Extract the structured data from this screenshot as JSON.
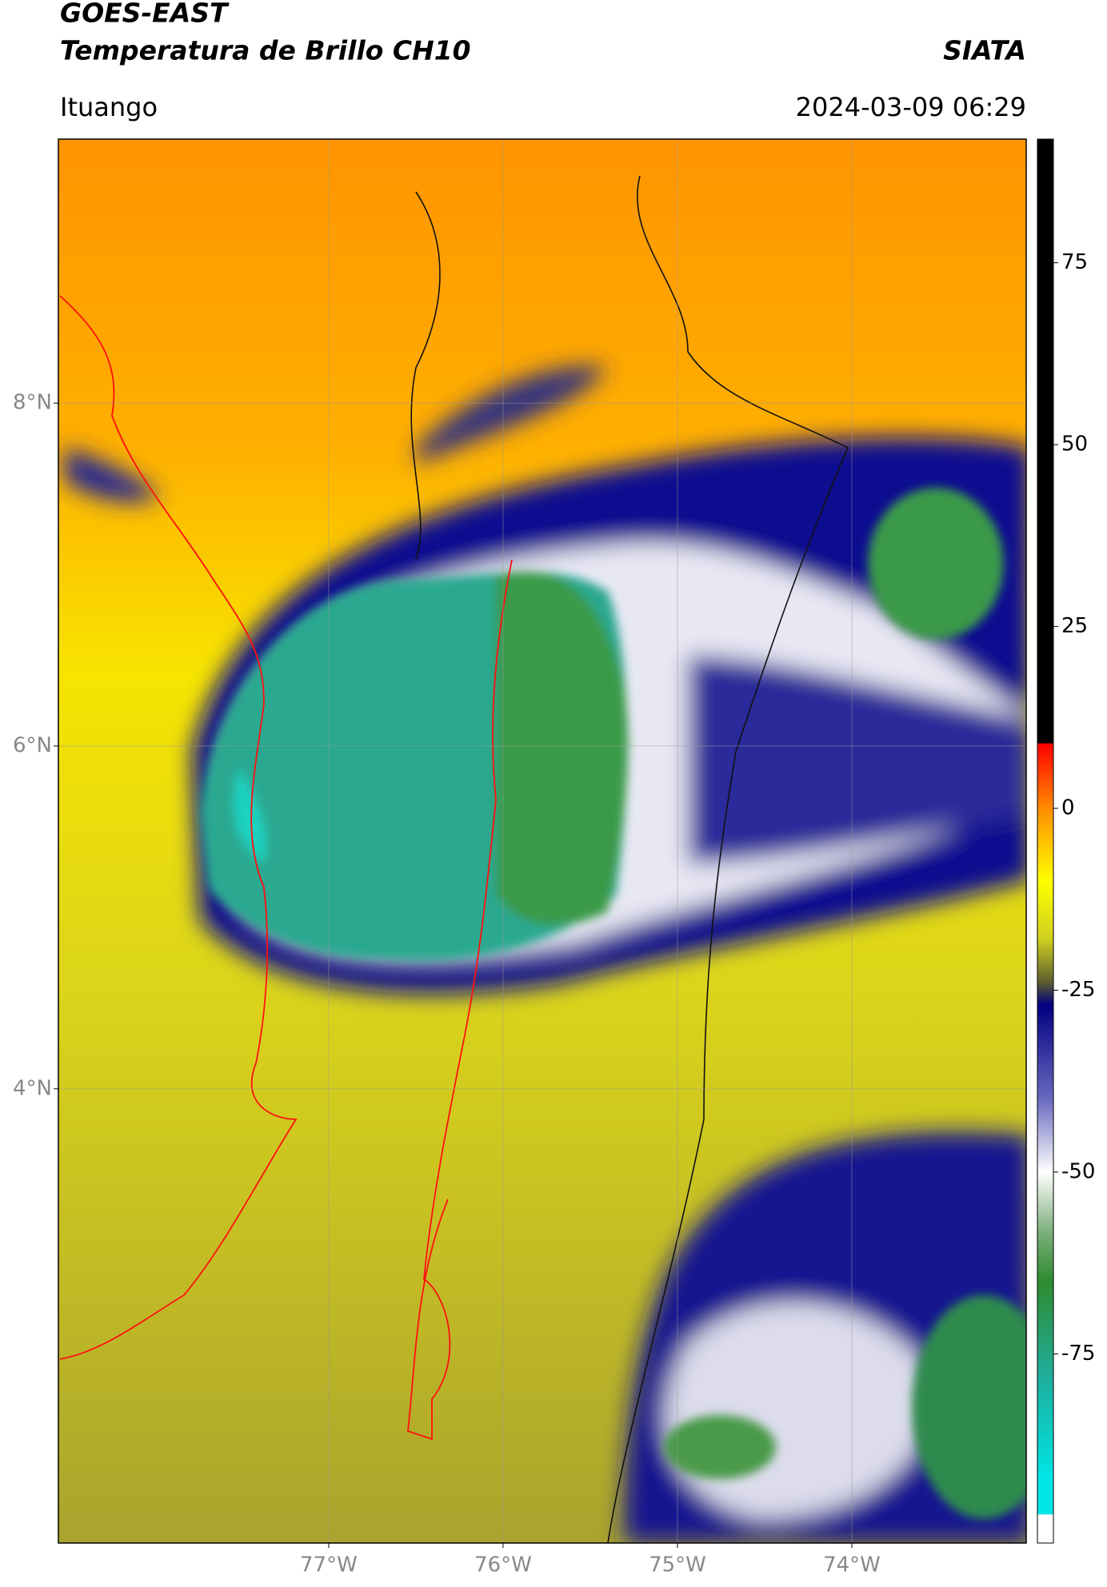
{
  "chart_data": {
    "type": "map",
    "title": "GOES-EAST",
    "subtitle": "Temperatura de Brillo CH10",
    "source": "SIATA",
    "region": "Ituango",
    "timestamp": "2024-03-09 06:29",
    "xlim": [
      -78.55,
      -73.0
    ],
    "ylim": [
      1.35,
      9.54
    ],
    "xticks": [
      {
        "value": -77,
        "label": "77°W"
      },
      {
        "value": -76,
        "label": "76°W"
      },
      {
        "value": -75,
        "label": "75°W"
      },
      {
        "value": -74,
        "label": "74°W"
      }
    ],
    "yticks": [
      {
        "value": 8,
        "label": "8°N"
      },
      {
        "value": 6,
        "label": "6°N"
      },
      {
        "value": 4,
        "label": "4°N"
      }
    ],
    "grid": true,
    "colorbar": {
      "lim": [
        -101,
        92
      ],
      "ticks": [
        75,
        50,
        25,
        0,
        -25,
        -50,
        -75
      ],
      "stops": [
        {
          "value": 92,
          "color": "#000000"
        },
        {
          "value": 9,
          "color": "#000000"
        },
        {
          "value": 8.9,
          "color": "#ff0000"
        },
        {
          "value": 0,
          "color": "#ff8c00"
        },
        {
          "value": -10,
          "color": "#ffff00"
        },
        {
          "value": -18,
          "color": "#cfcf20"
        },
        {
          "value": -24,
          "color": "#5a5a30"
        },
        {
          "value": -27,
          "color": "#000080"
        },
        {
          "value": -40,
          "color": "#6a6ac0"
        },
        {
          "value": -50,
          "color": "#ffffff"
        },
        {
          "value": -58,
          "color": "#7fb07f"
        },
        {
          "value": -65,
          "color": "#2e8b2e"
        },
        {
          "value": -78,
          "color": "#1fae9c"
        },
        {
          "value": -92,
          "color": "#00e5e5"
        },
        {
          "value": -97,
          "color": "#00e5e5"
        },
        {
          "value": -97.1,
          "color": "#ffffff"
        },
        {
          "value": -101,
          "color": "#ffffff"
        }
      ]
    }
  }
}
